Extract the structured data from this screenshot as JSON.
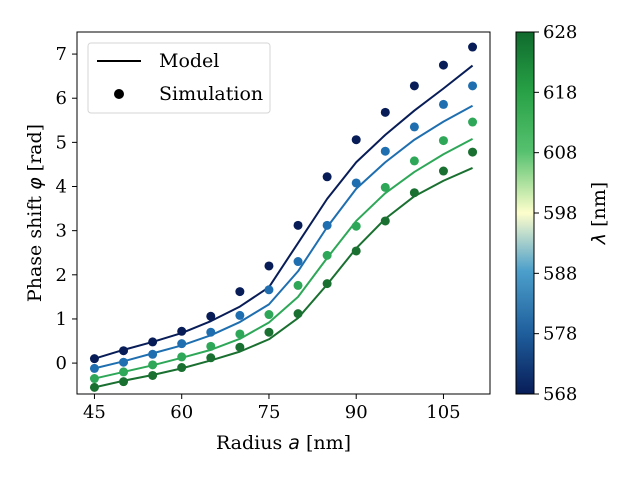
{
  "chart_data": {
    "type": "scatter",
    "xlabel": "Radius a [nm]",
    "xlabel_text": "Radius ",
    "xlabel_symbol": "a",
    "xlabel_unit": " [nm]",
    "ylabel": "Phase shift φ [rad]",
    "ylabel_text": "Phase shift ",
    "ylabel_symbol": "φ",
    "ylabel_unit": " [rad]",
    "xlim": [
      42,
      113
    ],
    "ylim": [
      -0.7,
      7.5
    ],
    "xticks": [
      45,
      60,
      75,
      90,
      105
    ],
    "xtick_labels": [
      "45",
      "60",
      "75",
      "90",
      "105"
    ],
    "yticks": [
      0,
      1,
      2,
      3,
      4,
      5,
      6,
      7
    ],
    "ytick_labels": [
      "0",
      "1",
      "2",
      "3",
      "4",
      "5",
      "6",
      "7"
    ],
    "legend": {
      "position": "top-left",
      "model_label": "Model",
      "simulation_label": "Simulation"
    },
    "colorbar": {
      "label": "λ [nm]",
      "label_symbol": "λ",
      "label_unit": " [nm]",
      "range": [
        568,
        628
      ],
      "ticks": [
        568,
        578,
        588,
        598,
        608,
        618,
        628
      ],
      "tick_labels": [
        "568",
        "578",
        "588",
        "598",
        "608",
        "618",
        "628"
      ],
      "colors": [
        "#081d58",
        "#1f5f9d",
        "#4c9fcb",
        "#fefecc",
        "#56c16f",
        "#27a045",
        "#0f6a2d"
      ]
    },
    "x": [
      45,
      50,
      55,
      60,
      65,
      70,
      75,
      80,
      85,
      90,
      95,
      100,
      105,
      110
    ],
    "series": [
      {
        "name": "568 nm",
        "color": "#081d58",
        "simulation": [
          0.1,
          0.28,
          0.48,
          0.72,
          1.06,
          1.62,
          2.2,
          3.12,
          4.22,
          5.06,
          5.68,
          6.28,
          6.75,
          7.16
        ],
        "model": [
          0.1,
          0.3,
          0.48,
          0.68,
          0.95,
          1.28,
          1.72,
          2.72,
          3.72,
          4.55,
          5.17,
          5.72,
          6.22,
          6.74
        ]
      },
      {
        "name": "578 nm",
        "color": "#1f6fb0",
        "simulation": [
          -0.12,
          0.02,
          0.2,
          0.44,
          0.7,
          1.08,
          1.66,
          2.3,
          3.12,
          4.08,
          4.8,
          5.35,
          5.86,
          6.28
        ],
        "model": [
          -0.12,
          0.04,
          0.22,
          0.4,
          0.63,
          0.93,
          1.33,
          2.08,
          3.08,
          3.95,
          4.55,
          5.06,
          5.47,
          5.83
        ]
      },
      {
        "name": "608 nm",
        "color": "#2ea858",
        "simulation": [
          -0.35,
          -0.2,
          -0.04,
          0.14,
          0.38,
          0.66,
          1.1,
          1.76,
          2.44,
          3.1,
          3.98,
          4.58,
          5.04,
          5.46
        ],
        "model": [
          -0.35,
          -0.2,
          -0.05,
          0.12,
          0.3,
          0.55,
          0.92,
          1.5,
          2.38,
          3.22,
          3.85,
          4.33,
          4.73,
          5.08
        ]
      },
      {
        "name": "628 nm",
        "color": "#1a7030",
        "simulation": [
          -0.55,
          -0.42,
          -0.28,
          -0.1,
          0.12,
          0.36,
          0.7,
          1.12,
          1.8,
          2.54,
          3.22,
          3.86,
          4.35,
          4.78
        ],
        "model": [
          -0.55,
          -0.4,
          -0.27,
          -0.12,
          0.06,
          0.26,
          0.54,
          1.02,
          1.78,
          2.6,
          3.27,
          3.78,
          4.13,
          4.42
        ]
      }
    ]
  }
}
